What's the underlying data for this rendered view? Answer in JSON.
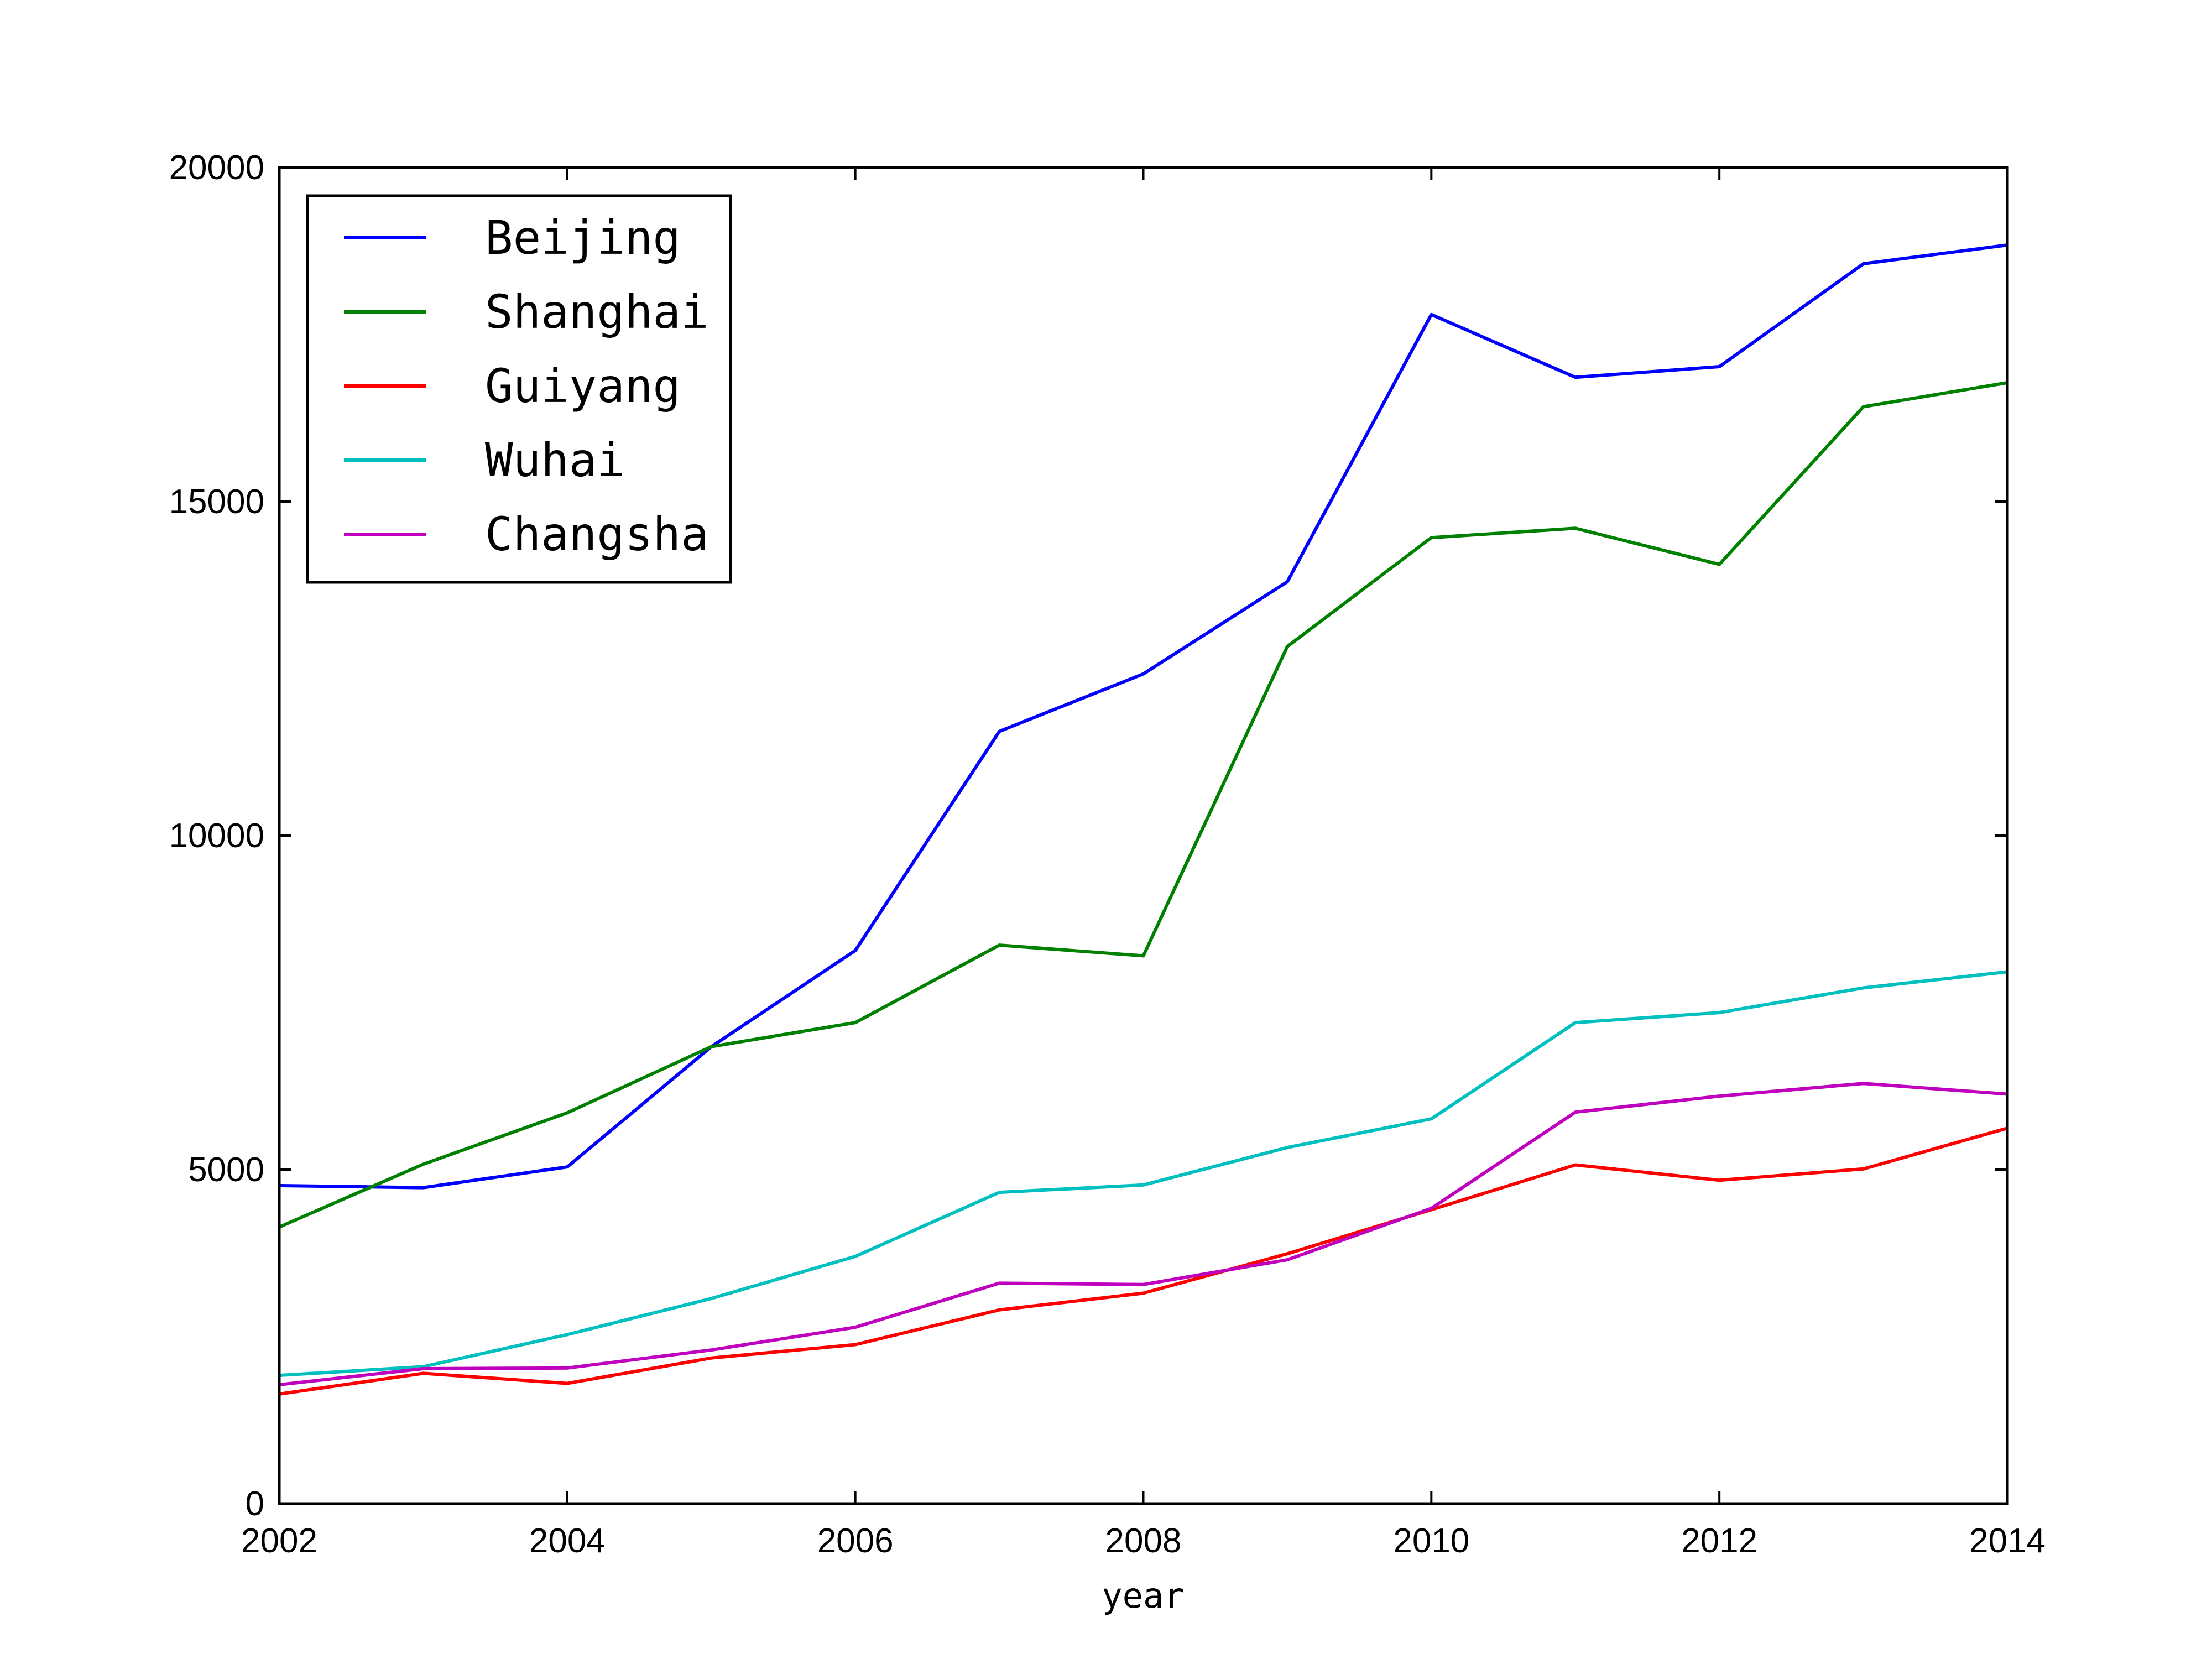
{
  "chart_data": {
    "type": "line",
    "title": "",
    "xlabel": "year",
    "ylabel": "",
    "xlim": [
      2002,
      2014
    ],
    "ylim": [
      0,
      20000
    ],
    "xticks": [
      2002,
      2004,
      2006,
      2008,
      2010,
      2012,
      2014
    ],
    "yticks": [
      0,
      5000,
      10000,
      15000,
      20000
    ],
    "grid": false,
    "legend_position": "top-left",
    "x": [
      2002,
      2003,
      2004,
      2005,
      2006,
      2007,
      2008,
      2009,
      2010,
      2011,
      2012,
      2013,
      2014
    ],
    "series": [
      {
        "name": "Beijing",
        "color": "#0000ff",
        "values": [
          4760,
          4730,
          5040,
          6840,
          8280,
          11560,
          12420,
          13800,
          17800,
          16860,
          17020,
          18560,
          18840
        ]
      },
      {
        "name": "Shanghai",
        "color": "#008000",
        "values": [
          4140,
          5080,
          5850,
          6840,
          7200,
          8360,
          8200,
          12830,
          14460,
          14600,
          14060,
          16420,
          16780
        ]
      },
      {
        "name": "Guiyang",
        "color": "#ff0000",
        "values": [
          1640,
          1950,
          1800,
          2180,
          2380,
          2900,
          3150,
          3740,
          4400,
          5070,
          4840,
          5010,
          5620
        ]
      },
      {
        "name": "Wuhai",
        "color": "#00bfbf",
        "values": [
          1920,
          2050,
          2530,
          3070,
          3700,
          4660,
          4770,
          5330,
          5760,
          7200,
          7350,
          7720,
          7960
        ]
      },
      {
        "name": "Changsha",
        "color": "#bf00bf",
        "values": [
          1780,
          2020,
          2030,
          2300,
          2640,
          3300,
          3280,
          3650,
          4420,
          5860,
          6100,
          6290,
          6130
        ]
      }
    ]
  }
}
